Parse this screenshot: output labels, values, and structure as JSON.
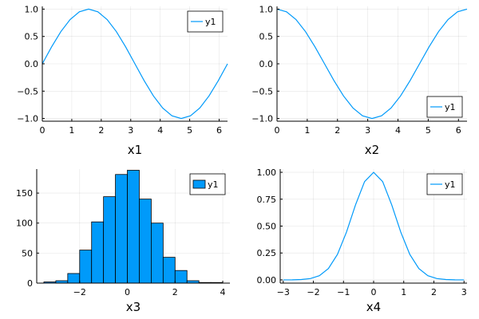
{
  "colors": {
    "series": "#009AFA",
    "bar_edge": "#000000"
  },
  "chart_data": [
    {
      "type": "line",
      "xlabel": "x1",
      "ylabel": "",
      "title": "",
      "xlim": [
        0,
        6.2832
      ],
      "ylim": [
        -1.05,
        1.05
      ],
      "xticks": [
        0,
        1,
        2,
        3,
        4,
        5,
        6
      ],
      "yticks": [
        -1.0,
        -0.5,
        0.0,
        0.5,
        1.0
      ],
      "ytick_labels": [
        "-1.0",
        "-0.5",
        "0.0",
        "0.5",
        "1.0"
      ],
      "grid": true,
      "legend": "top-right",
      "series": [
        {
          "name": "y1",
          "x": [
            0,
            0.3142,
            0.6283,
            0.9425,
            1.2566,
            1.5708,
            1.885,
            2.1991,
            2.5133,
            2.8274,
            3.1416,
            3.4558,
            3.7699,
            4.0841,
            4.3982,
            4.7124,
            5.0265,
            5.3407,
            5.6549,
            5.969,
            6.2832
          ],
          "y": [
            0.0,
            0.309,
            0.588,
            0.809,
            0.951,
            1.0,
            0.951,
            0.809,
            0.588,
            0.309,
            0.0,
            -0.309,
            -0.588,
            -0.809,
            -0.951,
            -1.0,
            -0.951,
            -0.809,
            -0.588,
            -0.309,
            0.0
          ]
        }
      ]
    },
    {
      "type": "line",
      "xlabel": "x2",
      "ylabel": "",
      "title": "",
      "xlim": [
        0,
        6.2832
      ],
      "ylim": [
        -1.05,
        1.05
      ],
      "xticks": [
        0,
        1,
        2,
        3,
        4,
        5,
        6
      ],
      "yticks": [
        -1.0,
        -0.5,
        0.0,
        0.5,
        1.0
      ],
      "ytick_labels": [
        "-1.0",
        "-0.5",
        "0.0",
        "0.5",
        "1.0"
      ],
      "grid": true,
      "legend": "bottom-right",
      "series": [
        {
          "name": "y1",
          "x": [
            0,
            0.3142,
            0.6283,
            0.9425,
            1.2566,
            1.5708,
            1.885,
            2.1991,
            2.5133,
            2.8274,
            3.1416,
            3.4558,
            3.7699,
            4.0841,
            4.3982,
            4.7124,
            5.0265,
            5.3407,
            5.6549,
            5.969,
            6.2832
          ],
          "y": [
            1.0,
            0.951,
            0.809,
            0.588,
            0.309,
            0.0,
            -0.309,
            -0.588,
            -0.809,
            -0.951,
            -1.0,
            -0.951,
            -0.809,
            -0.588,
            -0.309,
            0.0,
            0.309,
            0.588,
            0.809,
            0.951,
            1.0
          ]
        }
      ]
    },
    {
      "type": "bar",
      "xlabel": "x3",
      "ylabel": "",
      "title": "",
      "xlim": [
        -3.8,
        4.3
      ],
      "ylim": [
        0,
        190
      ],
      "xticks": [
        -2,
        0,
        2,
        4
      ],
      "yticks": [
        0,
        50,
        100,
        150
      ],
      "ytick_labels": [
        "0",
        "50",
        "100",
        "150"
      ],
      "grid": true,
      "legend": "top-right",
      "bin_edges": [
        -3.5,
        -3.0,
        -2.5,
        -2.0,
        -1.5,
        -1.0,
        -0.5,
        0.0,
        0.5,
        1.0,
        1.5,
        2.0,
        2.5,
        3.0,
        3.5,
        4.0
      ],
      "series": [
        {
          "name": "y1",
          "values": [
            2,
            4,
            16,
            55,
            102,
            144,
            181,
            188,
            140,
            100,
            43,
            21,
            4,
            1,
            1
          ]
        }
      ]
    },
    {
      "type": "line",
      "xlabel": "x4",
      "ylabel": "",
      "title": "",
      "xlim": [
        -3.1,
        3.1
      ],
      "ylim": [
        -0.03,
        1.03
      ],
      "xticks": [
        -3,
        -2,
        -1,
        0,
        1,
        2,
        3
      ],
      "yticks": [
        0,
        0.25,
        0.5,
        0.75,
        1.0
      ],
      "ytick_labels": [
        "0.00",
        "0.25",
        "0.50",
        "0.75",
        "1.00"
      ],
      "grid": true,
      "legend": "top-right",
      "series": [
        {
          "name": "y1",
          "x": [
            -3.0,
            -2.7,
            -2.4,
            -2.1,
            -1.8,
            -1.5,
            -1.2,
            -0.9,
            -0.6,
            -0.3,
            0.0,
            0.3,
            0.6,
            0.9,
            1.2,
            1.5,
            1.8,
            2.1,
            2.4,
            2.7,
            3.0
          ],
          "y": [
            0.0001,
            0.0007,
            0.0032,
            0.0122,
            0.0392,
            0.1054,
            0.2369,
            0.4449,
            0.6977,
            0.9139,
            1.0,
            0.9139,
            0.6977,
            0.4449,
            0.2369,
            0.1054,
            0.0392,
            0.0122,
            0.0032,
            0.0007,
            0.0001
          ]
        }
      ]
    }
  ]
}
